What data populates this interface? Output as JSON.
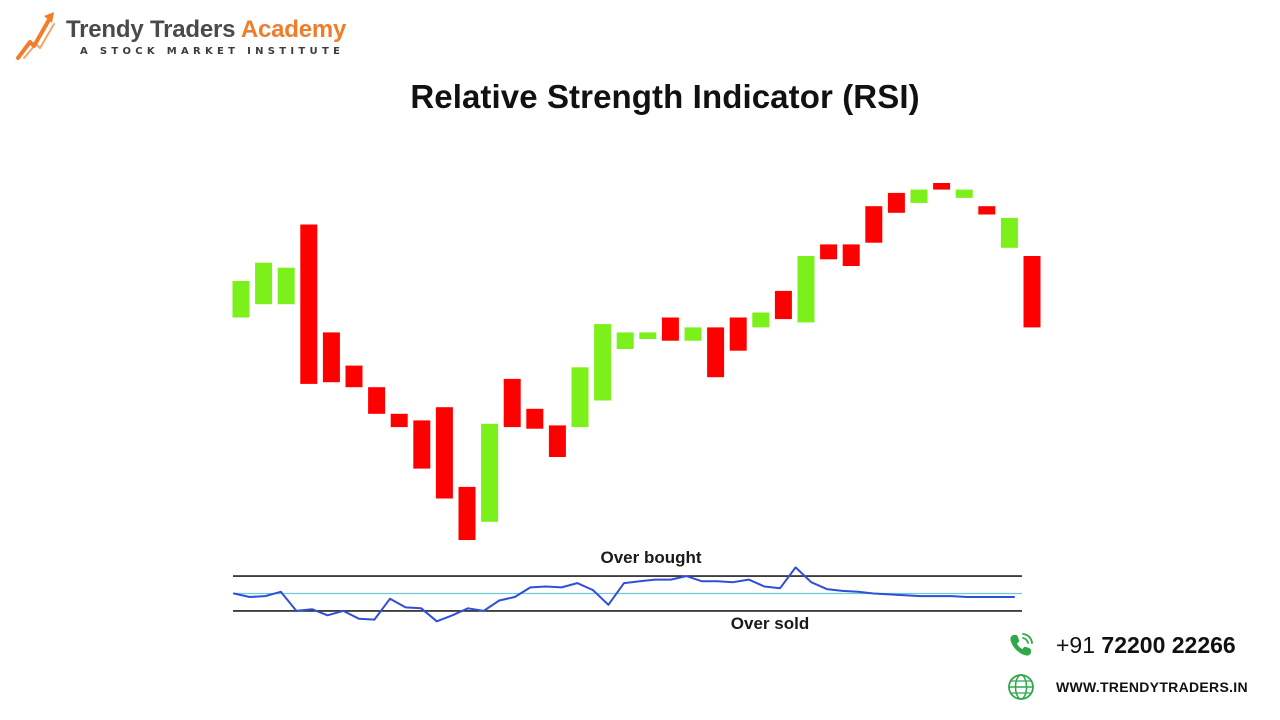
{
  "brand": {
    "name_part1": "Trendy Traders",
    "name_part2": "Academy",
    "tagline": "A STOCK MARKET INSTITUTE",
    "primary_color": "#f07d2c",
    "text_color": "#4a4a4a",
    "logo_icon": "trend-arrow-logo-icon"
  },
  "title": "Relative Strength Indicator (RSI)",
  "chart_data": [
    {
      "type": "candlestick",
      "colors": {
        "up": "#7cf01b",
        "down": "#ff0000"
      },
      "ylim": [
        0,
        100
      ],
      "candles": [
        {
          "dir": "up",
          "open": 38,
          "close": 49
        },
        {
          "dir": "up",
          "open": 42,
          "close": 54.5
        },
        {
          "dir": "up",
          "open": 42,
          "close": 53
        },
        {
          "dir": "down",
          "open": 66,
          "close": 18
        },
        {
          "dir": "down",
          "open": 33.5,
          "close": 18.5
        },
        {
          "dir": "down",
          "open": 23.5,
          "close": 17
        },
        {
          "dir": "down",
          "open": 17,
          "close": 9
        },
        {
          "dir": "down",
          "open": 9,
          "close": 5
        },
        {
          "dir": "down",
          "open": 7,
          "close": -7.5
        },
        {
          "dir": "down",
          "open": 11,
          "close": -16.5
        },
        {
          "dir": "down",
          "open": -13,
          "close": -29
        },
        {
          "dir": "up",
          "open": -23.5,
          "close": 6
        },
        {
          "dir": "down",
          "open": 19.5,
          "close": 5
        },
        {
          "dir": "down",
          "open": 10.5,
          "close": 4.5
        },
        {
          "dir": "down",
          "open": 5.5,
          "close": -4
        },
        {
          "dir": "up",
          "open": 5,
          "close": 23
        },
        {
          "dir": "up",
          "open": 13,
          "close": 36
        },
        {
          "dir": "up",
          "open": 28.5,
          "close": 33.5
        },
        {
          "dir": "up",
          "open": 31.5,
          "close": 33.5
        },
        {
          "dir": "down",
          "open": 38,
          "close": 31
        },
        {
          "dir": "up",
          "open": 31,
          "close": 35
        },
        {
          "dir": "down",
          "open": 35,
          "close": 20
        },
        {
          "dir": "down",
          "open": 38,
          "close": 28
        },
        {
          "dir": "up",
          "open": 35,
          "close": 39.5
        },
        {
          "dir": "down",
          "open": 46,
          "close": 37.5
        },
        {
          "dir": "up",
          "open": 36.5,
          "close": 56.5
        },
        {
          "dir": "down",
          "open": 60,
          "close": 55.5
        },
        {
          "dir": "down",
          "open": 60,
          "close": 53.5
        },
        {
          "dir": "down",
          "open": 71.5,
          "close": 60.5
        },
        {
          "dir": "down",
          "open": 75.5,
          "close": 69.5
        },
        {
          "dir": "up",
          "open": 72.5,
          "close": 76.5
        },
        {
          "dir": "down",
          "open": 78.5,
          "close": 76.5
        },
        {
          "dir": "up",
          "open": 74,
          "close": 76.5
        },
        {
          "dir": "down",
          "open": 71.5,
          "close": 69
        },
        {
          "dir": "up",
          "open": 59,
          "close": 68
        },
        {
          "dir": "down",
          "open": 56.5,
          "close": 35
        }
      ]
    },
    {
      "type": "line",
      "ylim": [
        0,
        100
      ],
      "levels": [
        {
          "name": "Over bought",
          "value": 70,
          "color": "#222222"
        },
        {
          "name": "",
          "value": 50,
          "color": "#6fc9d6"
        },
        {
          "name": "Over sold",
          "value": 30,
          "color": "#222222"
        }
      ],
      "series": [
        {
          "color": "#2f4fd8",
          "x": [
            0,
            2,
            4,
            6,
            8,
            10,
            12,
            14,
            16,
            18,
            20,
            22,
            24,
            26,
            28,
            30,
            32,
            34,
            36,
            38,
            40,
            42,
            44,
            46,
            48,
            50,
            52,
            54,
            56,
            58,
            60,
            62,
            64,
            66,
            68,
            70,
            72,
            74,
            76,
            78,
            80,
            82,
            84,
            86,
            88,
            90,
            92,
            94,
            96,
            98,
            100
          ],
          "y": [
            50,
            46,
            47,
            52,
            30,
            32,
            25,
            30,
            21,
            20,
            44,
            34,
            33,
            18,
            25,
            33,
            30,
            42,
            46,
            57,
            58,
            57,
            62,
            54,
            37,
            62,
            64,
            66,
            66,
            70,
            64,
            64,
            63,
            66,
            58,
            56,
            80,
            63,
            55,
            53,
            52,
            50,
            49,
            48,
            47,
            47,
            47,
            46,
            46,
            46,
            46
          ]
        }
      ]
    }
  ],
  "contact": {
    "phone_prefix": "+91",
    "phone_number": "72200 22266",
    "website": "WWW.TRENDYTRADERS.IN",
    "phone_icon": "phone-icon",
    "web_icon": "globe-icon",
    "icon_color": "#2fa84a"
  }
}
